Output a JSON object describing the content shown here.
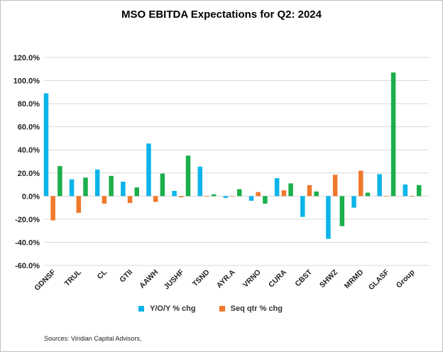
{
  "chart_data": {
    "type": "bar",
    "title": "MSO EBITDA Expectations for Q2: 2024",
    "categories": [
      "GDNSF",
      "TRUL",
      "CL",
      "GTII",
      "AAWH",
      "JUSHF",
      "TSND",
      "AYR.A",
      "VRNO",
      "CURA",
      "CBST",
      "SHWZ",
      "MRMD",
      "GLASF",
      "Group"
    ],
    "series": [
      {
        "name": "Y/O/Y % chg",
        "color": "#0db4e9",
        "values": [
          89,
          14.5,
          23,
          12.5,
          45.5,
          4.5,
          25.5,
          -1.5,
          -4,
          15.5,
          -18,
          -37,
          -10,
          19,
          10
        ]
      },
      {
        "name": "Seq qtr % chg",
        "color": "#f0782c",
        "values": [
          -21,
          -14.5,
          -6.5,
          -6,
          -5,
          -1,
          -0.5,
          0,
          3.5,
          5,
          9.5,
          18.5,
          22,
          0,
          -0.5
        ]
      },
      {
        "name": "",
        "color": "#1aaf4b",
        "values": [
          26,
          16,
          17.5,
          7.5,
          19.5,
          35,
          1.5,
          6,
          -6.5,
          11,
          4,
          -26,
          3,
          107,
          9.5
        ]
      }
    ],
    "ylim": [
      -60,
      120
    ],
    "yticks": [
      "-60.0%",
      "-40.0%",
      "-20.0%",
      "0.0%",
      "20.0%",
      "40.0%",
      "60.0%",
      "80.0%",
      "100.0%",
      "120.0%"
    ],
    "xlabel": "",
    "ylabel": "",
    "grid": true,
    "legend_position": "bottom"
  },
  "legend": {
    "items": [
      {
        "label": "Y/O/Y  % chg",
        "color": "#0db4e9"
      },
      {
        "label": "Seq qtr  % chg",
        "color": "#f0782c"
      }
    ]
  },
  "source": "Sources: Viridian Capital Advisors,"
}
